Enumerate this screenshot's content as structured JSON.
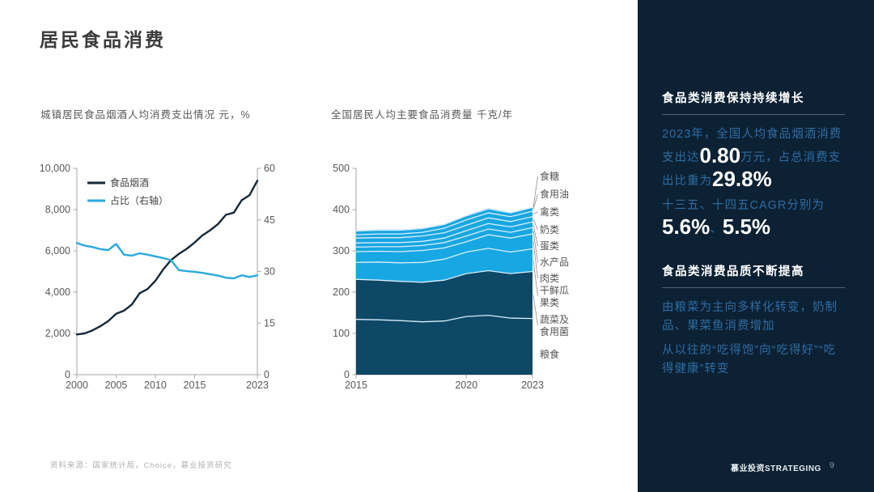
{
  "page": {
    "title": "居民食品消费",
    "source_note": "资料来源：国家统计局，Choice，慕业投资研究",
    "brand": "慕业投资STRATEGING",
    "page_number": "9"
  },
  "colors": {
    "sidebar_bg": "#0c2133",
    "accent_text_blue": "#2e6da4",
    "line_dark": "#16283a",
    "line_blue": "#2aa9e0",
    "area_dark": "#0d4867",
    "area_light": "#17a7e3",
    "band_separator": "#dbeef9",
    "axis_line": "#a6a6a6",
    "tick_label": "#595959",
    "leader_line": "#8c8c8c"
  },
  "chart_data": [
    {
      "type": "line",
      "title": "城镇居民食品烟酒人均消费支出情况 元，%",
      "x": [
        2000,
        2001,
        2002,
        2003,
        2004,
        2005,
        2006,
        2007,
        2008,
        2009,
        2010,
        2011,
        2012,
        2013,
        2014,
        2015,
        2016,
        2017,
        2018,
        2019,
        2020,
        2021,
        2022,
        2023
      ],
      "x_tick_years": [
        2000,
        2005,
        2010,
        2015,
        2023
      ],
      "x_tick_labels": [
        "2000",
        "2005",
        "2010",
        "2015",
        "2023"
      ],
      "left_axis": {
        "min": 0,
        "max": 10000,
        "tick_values": [
          0,
          2000,
          4000,
          6000,
          8000,
          10000
        ],
        "tick_labels": [
          "0",
          "2,000",
          "4,000",
          "6,000",
          "8,000",
          "10,000"
        ]
      },
      "right_axis": {
        "min": 0,
        "max": 60,
        "tick_values": [
          0,
          15,
          30,
          45,
          60
        ],
        "tick_labels": [
          "0",
          "15",
          "30",
          "45",
          "60"
        ]
      },
      "series": [
        {
          "name": "食品烟酒",
          "axis": "left",
          "color": "#16283a",
          "values": [
            1950,
            2000,
            2150,
            2350,
            2600,
            2950,
            3100,
            3400,
            3950,
            4150,
            4550,
            5100,
            5550,
            5850,
            6100,
            6400,
            6750,
            7000,
            7300,
            7750,
            7850,
            8450,
            8700,
            9400
          ]
        },
        {
          "name": "占比（右轴）",
          "axis": "right",
          "color": "#2aa9e0",
          "values": [
            38.3,
            37.5,
            37.1,
            36.5,
            36.2,
            38.0,
            34.9,
            34.6,
            35.3,
            34.9,
            34.4,
            33.9,
            33.3,
            30.4,
            30.1,
            29.9,
            29.6,
            29.2,
            28.8,
            28.2,
            28.0,
            28.9,
            28.4,
            28.9
          ]
        }
      ],
      "legend_position": "top-left-inside",
      "grid": false
    },
    {
      "type": "area",
      "title": "全国居民人均主要食品消费量 千克/年",
      "x": [
        2015,
        2016,
        2017,
        2018,
        2019,
        2020,
        2021,
        2022,
        2023
      ],
      "x_tick_years": [
        2015,
        2020,
        2023
      ],
      "x_tick_labels": [
        "2015",
        "2020",
        "2023"
      ],
      "y_axis": {
        "min": 0,
        "max": 500,
        "tick_values": [
          0,
          100,
          200,
          300,
          400,
          500
        ],
        "tick_labels": [
          "0",
          "100",
          "200",
          "300",
          "400",
          "500"
        ]
      },
      "stacked": true,
      "series": [
        {
          "name": "粮食",
          "label_lines": [
            "粮食"
          ],
          "group": "dark",
          "color": "#0d4867",
          "values": [
            134,
            133,
            131,
            128,
            130,
            141,
            144,
            137,
            136
          ]
        },
        {
          "name": "蔬菜及食用菌",
          "label_lines": [
            "蔬菜及",
            "食用菌"
          ],
          "group": "dark",
          "color": "#0d4867",
          "values": [
            97,
            96,
            95,
            96,
            99,
            104,
            108,
            108,
            114
          ]
        },
        {
          "name": "干鲜瓜果类",
          "label_lines": [
            "干鲜瓜",
            "果类"
          ],
          "group": "light",
          "color": "#17a7e3",
          "values": [
            41,
            44,
            45,
            48,
            51,
            52,
            54,
            52,
            55
          ]
        },
        {
          "name": "肉类",
          "label_lines": [
            "肉类"
          ],
          "group": "light",
          "color": "#17a7e3",
          "values": [
            26,
            26,
            27,
            29,
            27,
            25,
            33,
            34,
            36
          ]
        },
        {
          "name": "水产品",
          "label_lines": [
            "水产品"
          ],
          "group": "light",
          "color": "#17a7e3",
          "values": [
            11,
            11,
            12,
            12,
            13,
            14,
            14,
            14,
            15
          ]
        },
        {
          "name": "蛋类",
          "label_lines": [
            "蛋类"
          ],
          "group": "light",
          "color": "#17a7e3",
          "values": [
            10,
            10,
            10,
            10,
            11,
            13,
            13,
            13,
            14
          ]
        },
        {
          "name": "奶类",
          "label_lines": [
            "奶类"
          ],
          "group": "light",
          "color": "#17a7e3",
          "values": [
            12,
            12,
            12,
            13,
            13,
            13,
            14,
            13,
            13
          ]
        },
        {
          "name": "禽类",
          "label_lines": [
            "禽类"
          ],
          "group": "light",
          "color": "#17a7e3",
          "values": [
            8,
            9,
            9,
            9,
            11,
            13,
            12,
            12,
            13
          ]
        },
        {
          "name": "食用油",
          "label_lines": [
            "食用油"
          ],
          "group": "light",
          "color": "#17a7e3",
          "values": [
            9,
            9,
            9,
            9,
            9,
            10,
            10,
            9,
            9
          ]
        },
        {
          "name": "食糖",
          "label_lines": [
            "食糖"
          ],
          "group": "light",
          "color": "#17a7e3",
          "values": [
            1.3,
            1.3,
            1.3,
            1.3,
            1.3,
            1.3,
            1.3,
            1.3,
            1.3
          ]
        }
      ],
      "grid": false
    }
  ],
  "sidebar": {
    "section1": {
      "heading": "食品类消费保持持续增长",
      "insight1_segments": [
        {
          "t": "2023年，全国人均食品烟酒消费支出达",
          "s": "normal"
        },
        {
          "t": "0.80",
          "s": "big"
        },
        {
          "t": "万元，占总消费支出比重为",
          "s": "normal"
        },
        {
          "t": "29.8%",
          "s": "big"
        }
      ],
      "insight2_segments": [
        {
          "t": "十三五、十四五CAGR分别为",
          "s": "normal"
        },
        {
          "t": "5.6%",
          "s": "big"
        },
        {
          "t": "、",
          "s": "normal"
        },
        {
          "t": "5.5%",
          "s": "big"
        }
      ]
    },
    "section2": {
      "heading": "食品类消费品质不断提高",
      "para1": "由粮菜为主向多样化转变，奶制品、果菜鱼消费增加",
      "para2": "从以往的“吃得饱”向“吃得好”“吃得健康”转变"
    }
  }
}
